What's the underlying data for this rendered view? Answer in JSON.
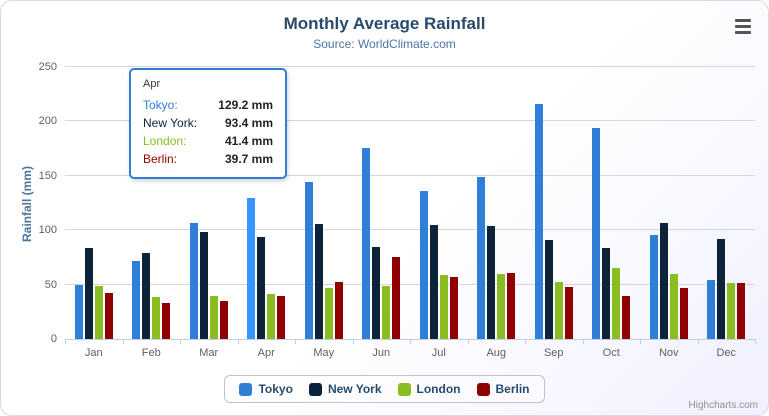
{
  "chart": {
    "title": "Monthly Average Rainfall",
    "subtitle": "Source: WorldClimate.com",
    "credits": "Highcharts.com"
  },
  "chart_data": {
    "type": "bar",
    "title": "Monthly Average Rainfall",
    "xlabel": "",
    "ylabel": "Rainfall (mm)",
    "ylim": [
      0,
      250
    ],
    "yticks": [
      0,
      50,
      100,
      150,
      200,
      250
    ],
    "grid": true,
    "legend_position": "bottom",
    "categories": [
      "Jan",
      "Feb",
      "Mar",
      "Apr",
      "May",
      "Jun",
      "Jul",
      "Aug",
      "Sep",
      "Oct",
      "Nov",
      "Dec"
    ],
    "series": [
      {
        "name": "Tokyo",
        "color": "#2f7ed8",
        "values": [
          49.9,
          71.5,
          106.4,
          129.2,
          144.0,
          176.0,
          135.6,
          148.5,
          216.4,
          194.1,
          95.6,
          54.4
        ]
      },
      {
        "name": "New York",
        "color": "#0d233a",
        "values": [
          83.6,
          78.8,
          98.5,
          93.4,
          106.0,
          84.5,
          105.0,
          104.3,
          91.2,
          83.5,
          106.6,
          92.3
        ]
      },
      {
        "name": "London",
        "color": "#8bbc21",
        "values": [
          48.9,
          38.8,
          39.3,
          41.4,
          47.0,
          48.3,
          59.0,
          59.6,
          52.4,
          65.2,
          59.3,
          51.2
        ]
      },
      {
        "name": "Berlin",
        "color": "#910000",
        "values": [
          42.4,
          33.2,
          34.5,
          39.7,
          52.6,
          75.5,
          57.4,
          60.4,
          47.6,
          39.1,
          46.8,
          51.1
        ]
      }
    ]
  },
  "tooltip": {
    "header": "Apr",
    "border_color": "#2f7ed8",
    "hovered": {
      "series": "Tokyo",
      "category": "Apr"
    },
    "rows": [
      {
        "name": "Tokyo:",
        "value": "129.2 mm",
        "color": "#2f7ed8"
      },
      {
        "name": "New York:",
        "value": "93.4 mm",
        "color": "#0d233a"
      },
      {
        "name": "London:",
        "value": "41.4 mm",
        "color": "#8bbc21"
      },
      {
        "name": "Berlin:",
        "value": "39.7 mm",
        "color": "#910000"
      }
    ]
  }
}
